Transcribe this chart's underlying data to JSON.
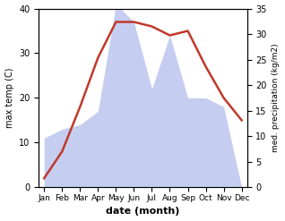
{
  "months": [
    "Jan",
    "Feb",
    "Mar",
    "Apr",
    "May",
    "Jun",
    "Jul",
    "Aug",
    "Sep",
    "Oct",
    "Nov",
    "Dec"
  ],
  "temperature": [
    2,
    8,
    18,
    29,
    37,
    37,
    36,
    34,
    35,
    27,
    20,
    15
  ],
  "precipitation_left_scaled": [
    11,
    13,
    14,
    17,
    41,
    37,
    22,
    34,
    20,
    20,
    18,
    0
  ],
  "temp_color": "#c0392b",
  "precip_color_fill": "#c5cef0",
  "title": "",
  "xlabel": "date (month)",
  "ylabel_left": "max temp (C)",
  "ylabel_right": "med. precipitation (kg/m2)",
  "ylim_left": [
    0,
    40
  ],
  "ylim_right": [
    0,
    35
  ],
  "temp_lw": 1.8,
  "bg_color": "#ffffff"
}
